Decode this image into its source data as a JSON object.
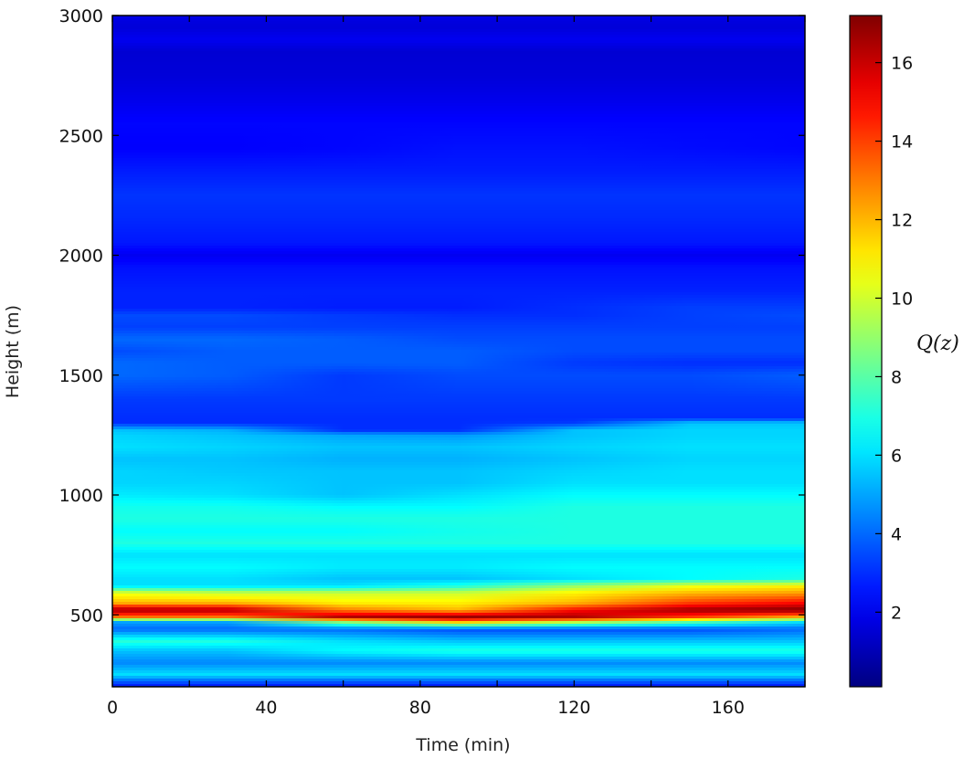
{
  "chart_data": {
    "type": "heatmap",
    "title": "",
    "xlabel": "Time (min)",
    "ylabel": "Height (m)",
    "xlim": [
      0,
      180
    ],
    "ylim": [
      200,
      3000
    ],
    "xticks": [
      0,
      40,
      80,
      120,
      160
    ],
    "yticks": [
      500,
      1000,
      1500,
      2000,
      2500,
      3000
    ],
    "colormap": "jet",
    "colorbar": {
      "label": "Q(z)",
      "range": [
        0.1,
        17.2
      ],
      "ticks": [
        2,
        4,
        6,
        8,
        10,
        12,
        14,
        16
      ]
    },
    "times": [
      0,
      30,
      60,
      90,
      120,
      150,
      180
    ],
    "heights": [
      200,
      225,
      250,
      300,
      350,
      390,
      440,
      470,
      490,
      520,
      550,
      590,
      620,
      650,
      700,
      750,
      800,
      850,
      900,
      950,
      1000,
      1050,
      1100,
      1150,
      1200,
      1250,
      1270,
      1300,
      1320,
      1400,
      1500,
      1550,
      1600,
      1650,
      1700,
      1750,
      1780,
      1850,
      1950,
      2000,
      2050,
      2150,
      2250,
      2350,
      2450,
      2550,
      2650,
      2750,
      2850,
      2900,
      2950,
      3000
    ],
    "values": [
      [
        2.5,
        2.5,
        2.5,
        2.5,
        2.5,
        2.5,
        2.5
      ],
      [
        4,
        4,
        4,
        4,
        4,
        4,
        4
      ],
      [
        6,
        6,
        6,
        6,
        6,
        6,
        6
      ],
      [
        4.5,
        4.5,
        4.5,
        4.5,
        4.5,
        4.5,
        4.5
      ],
      [
        5.5,
        5.5,
        6.5,
        7,
        7,
        7,
        7
      ],
      [
        7.2,
        7,
        6,
        5.5,
        5.5,
        5.5,
        5.5
      ],
      [
        4,
        4,
        4,
        3.5,
        3.5,
        3.5,
        4
      ],
      [
        5,
        5,
        9,
        12,
        10,
        8,
        6
      ],
      [
        13,
        13,
        16.5,
        17,
        16.5,
        14,
        12
      ],
      [
        16.8,
        16.5,
        13,
        12,
        15,
        16.8,
        17.2
      ],
      [
        12,
        12,
        11,
        11,
        12,
        14,
        15
      ],
      [
        10.5,
        10,
        10,
        10,
        11,
        12,
        12.5
      ],
      [
        6,
        6,
        6,
        7,
        9,
        10.5,
        11
      ],
      [
        6,
        6,
        5.5,
        5.5,
        6,
        6.5,
        7
      ],
      [
        6.5,
        6.5,
        6.2,
        6.2,
        6.5,
        6.5,
        6.5
      ],
      [
        6,
        6,
        6,
        6,
        6,
        6,
        6
      ],
      [
        7,
        7,
        7,
        7,
        7,
        7,
        7
      ],
      [
        6.5,
        6.5,
        6.5,
        6.8,
        7,
        7,
        7
      ],
      [
        7,
        7,
        7,
        7,
        7,
        7,
        7
      ],
      [
        6.8,
        6.8,
        6.5,
        6.5,
        7,
        7,
        7
      ],
      [
        6.2,
        6,
        5.5,
        6,
        6.5,
        6.5,
        6.5
      ],
      [
        5.8,
        5.8,
        5.5,
        5.5,
        6,
        6,
        6
      ],
      [
        5.8,
        5.6,
        5.5,
        5.5,
        5.8,
        6,
        6
      ],
      [
        5.5,
        5.5,
        5.2,
        5.2,
        5.5,
        5.8,
        5.8
      ],
      [
        6,
        5.8,
        5.5,
        5.5,
        5.8,
        6,
        6
      ],
      [
        5.8,
        5.5,
        5,
        4.8,
        5.5,
        5.8,
        5.8
      ],
      [
        5.5,
        5.2,
        3,
        3,
        5.5,
        5.8,
        5.8
      ],
      [
        3,
        3,
        3,
        3,
        3.2,
        5.5,
        5.5
      ],
      [
        3,
        3,
        3,
        3,
        3,
        3,
        3
      ],
      [
        3.2,
        3.2,
        3.2,
        3.2,
        3.2,
        3.2,
        3.2
      ],
      [
        4,
        3.8,
        3.2,
        3.5,
        3.5,
        3.5,
        3.8
      ],
      [
        4,
        3.8,
        3.8,
        3.8,
        3.2,
        3,
        3
      ],
      [
        3.5,
        3.8,
        3.8,
        3.8,
        3.5,
        3.5,
        3.5
      ],
      [
        4,
        4,
        3.8,
        3.5,
        3.5,
        3.5,
        3.5
      ],
      [
        3.3,
        3.3,
        3.3,
        3.3,
        3.3,
        3.3,
        3.3
      ],
      [
        3.5,
        3.5,
        3.2,
        3,
        3,
        3.3,
        3.5
      ],
      [
        2.8,
        2.8,
        2.7,
        2.7,
        3,
        3.3,
        3.3
      ],
      [
        2.8,
        2.8,
        2.8,
        2.8,
        2.8,
        2.8,
        2.8
      ],
      [
        2.5,
        2.5,
        2.5,
        2.5,
        2.5,
        2.5,
        2.5
      ],
      [
        2,
        2,
        2,
        2,
        2,
        2,
        2
      ],
      [
        2.6,
        2.6,
        2.6,
        2.6,
        2.6,
        2.6,
        2.6
      ],
      [
        2.9,
        2.9,
        2.9,
        2.9,
        2.9,
        2.9,
        2.9
      ],
      [
        3.1,
        3.1,
        3.1,
        3.1,
        3.1,
        3.1,
        3.1
      ],
      [
        2.7,
        2.7,
        2.7,
        2.7,
        2.7,
        2.7,
        2.7
      ],
      [
        2.2,
        2.2,
        2.3,
        2.5,
        2.5,
        2.4,
        2.3
      ],
      [
        2.3,
        2.3,
        2.3,
        2.3,
        2.3,
        2.3,
        2.3
      ],
      [
        1.9,
        1.9,
        1.9,
        1.9,
        1.9,
        1.9,
        1.9
      ],
      [
        1.6,
        1.6,
        1.6,
        1.6,
        1.6,
        1.6,
        1.6
      ],
      [
        1.5,
        1.5,
        1.5,
        1.5,
        1.5,
        1.5,
        1.5
      ],
      [
        2,
        2,
        2,
        2,
        2,
        2,
        2
      ],
      [
        1.6,
        1.6,
        1.6,
        1.6,
        1.6,
        1.6,
        1.6
      ],
      [
        1.8,
        1.8,
        1.8,
        1.8,
        1.8,
        1.8,
        1.8
      ]
    ]
  }
}
